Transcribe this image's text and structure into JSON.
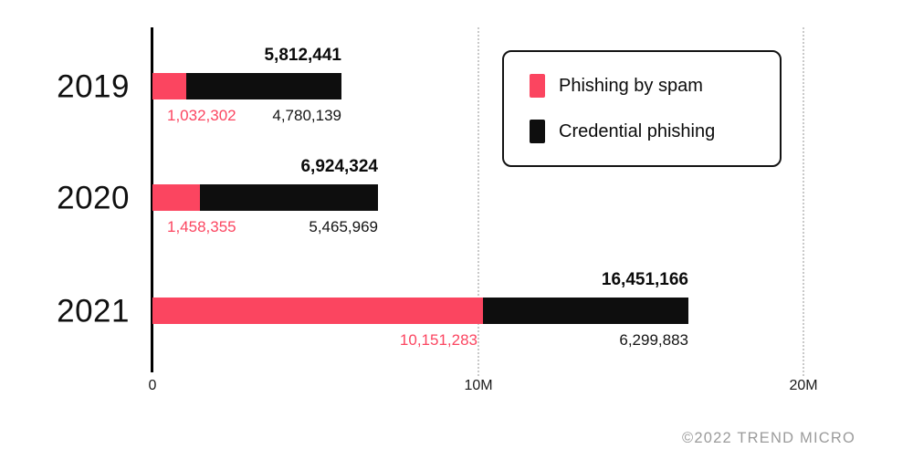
{
  "chart_data": {
    "type": "bar",
    "orientation": "horizontal",
    "stacked": true,
    "categories": [
      "2019",
      "2020",
      "2021"
    ],
    "series": [
      {
        "name": "Phishing by spam",
        "color": "#FB4560",
        "values": [
          1032302,
          1458355,
          10151283
        ]
      },
      {
        "name": "Credential phishing",
        "color": "#0E0E0E",
        "values": [
          4780139,
          5465969,
          6299883
        ]
      }
    ],
    "totals": [
      5812441,
      6924324,
      16451166
    ],
    "x_ticks": [
      "0",
      "10M",
      "20M"
    ],
    "x_tick_values": [
      0,
      10000000,
      20000000
    ],
    "xlim": [
      0,
      20000000
    ],
    "grid": "dotted vertical gridlines at 10M and 20M",
    "legend_position": "top-right"
  },
  "labels": {
    "rows": [
      {
        "year": "2019",
        "total": "5,812,441",
        "spam": "1,032,302",
        "credential": "4,780,139"
      },
      {
        "year": "2020",
        "total": "6,924,324",
        "spam": "1,458,355",
        "credential": "5,465,969"
      },
      {
        "year": "2021",
        "total": "16,451,166",
        "spam": "10,151,283",
        "credential": "6,299,883"
      }
    ],
    "footer": "©2022 TREND MICRO"
  },
  "colors": {
    "spam": "#FB4560",
    "credential": "#0E0E0E",
    "grid": "#C9C9C9",
    "footer": "#9B9B9B",
    "legend_border": "#131313"
  }
}
